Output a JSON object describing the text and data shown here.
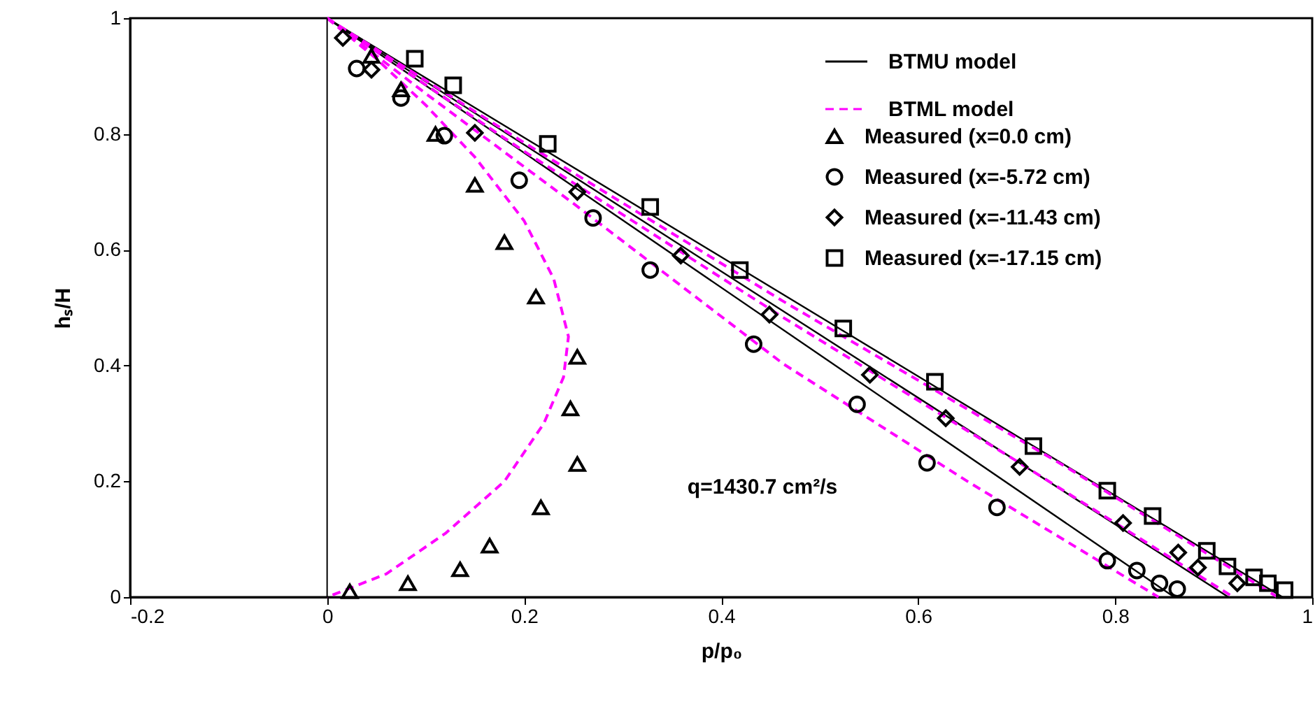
{
  "chart_data": {
    "type": "line",
    "xlabel": "p/p₀",
    "ylabel": "hₛ/H",
    "xlim": [
      -0.2,
      1
    ],
    "xticks": [
      -0.2,
      0,
      0.2,
      0.4,
      0.6,
      0.8,
      1
    ],
    "ylim": [
      0,
      1
    ],
    "yticks": [
      0,
      0.2,
      0.4,
      0.6,
      0.8,
      1
    ],
    "grid": false,
    "legend": "top right",
    "ref_lines": [
      {
        "axis": "x",
        "value": 0,
        "color": "#000000",
        "line_style": "solid"
      }
    ],
    "annotations": [
      "q=1430.7 cm²/s"
    ],
    "series": [
      {
        "name": "BTMU model",
        "color": "#000000",
        "line_style": "solid",
        "marker": "none",
        "x": [
          0,
          0.86
        ],
        "values": [
          1,
          0
        ]
      },
      {
        "color": "#000000",
        "line_style": "solid",
        "marker": "none",
        "x": [
          0,
          0.915
        ],
        "values": [
          1,
          0
        ]
      },
      {
        "color": "#000000",
        "line_style": "solid",
        "marker": "none",
        "x": [
          0,
          0.97
        ],
        "values": [
          1,
          0
        ]
      },
      {
        "name": "BTML model",
        "color": "#ff00ff",
        "line_style": "dashed",
        "marker": "none",
        "x": [
          0,
          0.1,
          0.25,
          0.463,
          0.65,
          0.844
        ],
        "values": [
          1,
          0.87,
          0.68,
          0.403,
          0.2,
          0
        ]
      },
      {
        "color": "#ff00ff",
        "line_style": "dashed",
        "marker": "none",
        "x": [
          0,
          0.2,
          0.463,
          0.7,
          0.92
        ],
        "values": [
          1,
          0.77,
          0.483,
          0.235,
          0
        ]
      },
      {
        "color": "#ff00ff",
        "line_style": "dashed",
        "marker": "none",
        "x": [
          0,
          0.2,
          0.463,
          0.75,
          0.965
        ],
        "values": [
          1,
          0.785,
          0.511,
          0.225,
          0
        ]
      },
      {
        "color": "#ff00ff",
        "line_style": "dashed",
        "marker": "none",
        "x": [
          0,
          0.05,
          0.1,
          0.15,
          0.2,
          0.23,
          0.245,
          0.24,
          0.22,
          0.18,
          0.12,
          0.06,
          0
        ],
        "values": [
          1,
          0.93,
          0.85,
          0.76,
          0.65,
          0.55,
          0.45,
          0.38,
          0.3,
          0.2,
          0.11,
          0.04,
          0
        ]
      },
      {
        "name": "Measured (x=0.0 cm)",
        "type": "scatter",
        "color": "#000000",
        "marker": "triangle",
        "x": [
          0.045,
          0.075,
          0.11,
          0.15,
          0.18,
          0.212,
          0.254,
          0.247,
          0.254,
          0.217,
          0.165,
          0.135,
          0.082,
          0.023
        ],
        "values": [
          0.935,
          0.877,
          0.8,
          0.712,
          0.613,
          0.519,
          0.415,
          0.326,
          0.23,
          0.155,
          0.089,
          0.048,
          0.024,
          0.01
        ]
      },
      {
        "name": "Measured (x=-5.72 cm)",
        "type": "scatter",
        "color": "#000000",
        "marker": "circle",
        "x": [
          0.03,
          0.075,
          0.119,
          0.195,
          0.27,
          0.328,
          0.433,
          0.538,
          0.609,
          0.68,
          0.792,
          0.822,
          0.845,
          0.863
        ],
        "values": [
          0.913,
          0.862,
          0.797,
          0.72,
          0.655,
          0.565,
          0.437,
          0.333,
          0.232,
          0.155,
          0.063,
          0.046,
          0.024,
          0.014
        ]
      },
      {
        "name": "Measured (x=-11.43 cm)",
        "type": "scatter",
        "color": "#000000",
        "marker": "diamond",
        "x": [
          0.016,
          0.045,
          0.15,
          0.254,
          0.359,
          0.449,
          0.551,
          0.628,
          0.703,
          0.808,
          0.864,
          0.884,
          0.924
        ],
        "values": [
          0.966,
          0.911,
          0.802,
          0.7,
          0.59,
          0.488,
          0.384,
          0.309,
          0.225,
          0.128,
          0.077,
          0.051,
          0.024
        ]
      },
      {
        "name": "Measured (x=-17.15 cm)",
        "type": "scatter",
        "color": "#000000",
        "marker": "square",
        "x": [
          0.089,
          0.128,
          0.224,
          0.328,
          0.419,
          0.524,
          0.617,
          0.717,
          0.792,
          0.838,
          0.893,
          0.914,
          0.941,
          0.955,
          0.972
        ],
        "values": [
          0.93,
          0.884,
          0.783,
          0.674,
          0.565,
          0.464,
          0.372,
          0.261,
          0.184,
          0.14,
          0.08,
          0.053,
          0.034,
          0.024,
          0.012
        ]
      }
    ]
  }
}
